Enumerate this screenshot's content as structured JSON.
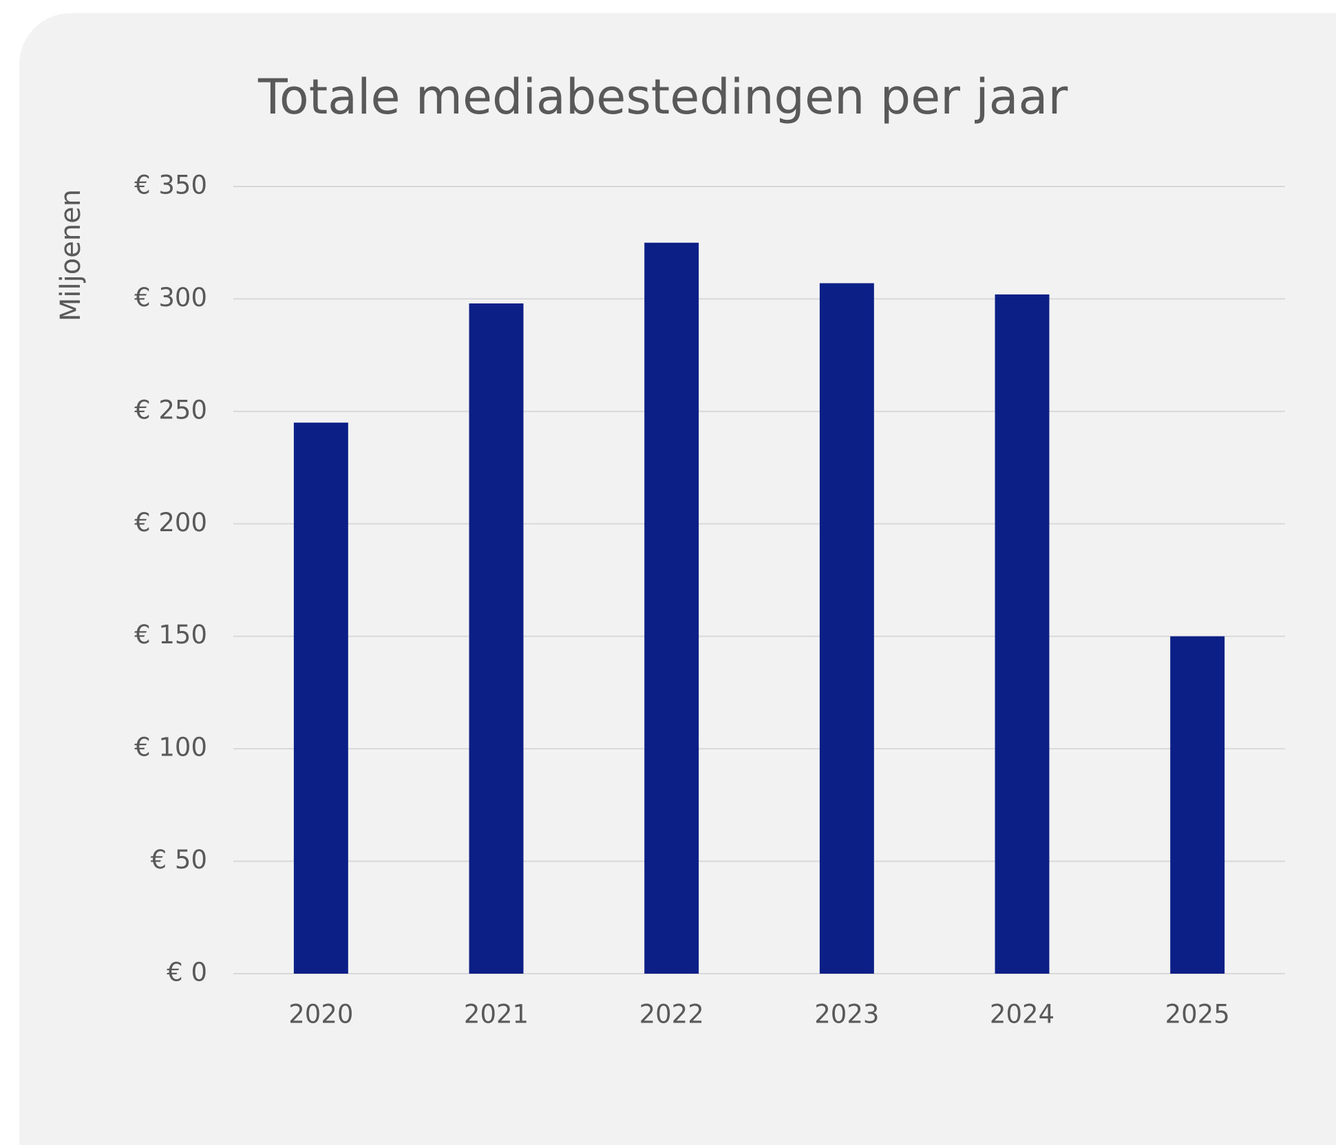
{
  "chart_data": {
    "type": "bar",
    "title": "Totale mediabestedingen per jaar",
    "y_label": "Miljoenen",
    "categories": [
      "2020",
      "2021",
      "2022",
      "2023",
      "2024",
      "2025"
    ],
    "values": [
      245,
      298,
      325,
      307,
      302,
      150
    ],
    "color": "#0c1f86",
    "ylim": [
      0,
      350
    ],
    "yticks": [
      {
        "value": 0,
        "label": "€ 0"
      },
      {
        "value": 50,
        "label": "€ 50"
      },
      {
        "value": 100,
        "label": "€ 100"
      },
      {
        "value": 150,
        "label": "€ 150"
      },
      {
        "value": 200,
        "label": "€ 200"
      },
      {
        "value": 250,
        "label": "€ 250"
      },
      {
        "value": 300,
        "label": "€ 300"
      },
      {
        "value": 350,
        "label": "€ 350"
      }
    ],
    "grid": true
  }
}
